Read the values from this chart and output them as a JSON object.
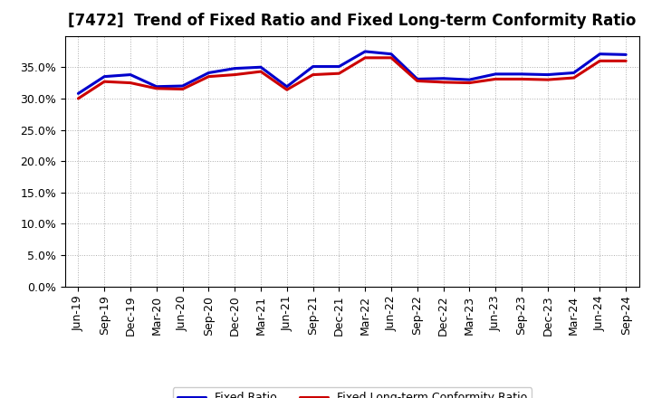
{
  "title": "[7472]  Trend of Fixed Ratio and Fixed Long-term Conformity Ratio",
  "labels": [
    "Jun-19",
    "Sep-19",
    "Dec-19",
    "Mar-20",
    "Jun-20",
    "Sep-20",
    "Dec-20",
    "Mar-21",
    "Jun-21",
    "Sep-21",
    "Dec-21",
    "Mar-22",
    "Jun-22",
    "Sep-22",
    "Dec-22",
    "Mar-23",
    "Jun-23",
    "Sep-23",
    "Dec-23",
    "Mar-24",
    "Jun-24",
    "Sep-24"
  ],
  "fixed_ratio": [
    30.8,
    33.5,
    33.8,
    31.9,
    32.0,
    34.1,
    34.8,
    35.0,
    31.9,
    35.1,
    35.1,
    37.5,
    37.1,
    33.1,
    33.2,
    33.0,
    33.9,
    33.9,
    33.8,
    34.1,
    37.1,
    37.0
  ],
  "fixed_lt_ratio": [
    30.0,
    32.7,
    32.5,
    31.6,
    31.5,
    33.5,
    33.8,
    34.3,
    31.4,
    33.8,
    34.0,
    36.5,
    36.5,
    32.8,
    32.6,
    32.5,
    33.1,
    33.1,
    33.0,
    33.3,
    36.0,
    36.0
  ],
  "fixed_ratio_color": "#0000cc",
  "fixed_lt_ratio_color": "#cc0000",
  "background_color": "#ffffff",
  "plot_bg_color": "#ffffff",
  "ylim": [
    0,
    40
  ],
  "yticks": [
    0.0,
    5.0,
    10.0,
    15.0,
    20.0,
    25.0,
    30.0,
    35.0
  ],
  "grid_color": "#999999",
  "legend_fixed_ratio": "Fixed Ratio",
  "legend_fixed_lt_ratio": "Fixed Long-term Conformity Ratio",
  "line_width": 2.2,
  "title_fontsize": 12,
  "tick_fontsize": 9
}
